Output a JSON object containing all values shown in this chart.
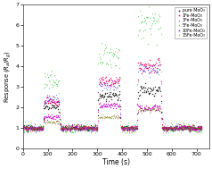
{
  "title": "",
  "xlabel": "Time (s)",
  "ylabel": "Response ($R_a$/$R_g$)",
  "xlim": [
    0,
    750
  ],
  "ylim": [
    0,
    7
  ],
  "yticks": [
    0,
    1,
    2,
    3,
    4,
    5,
    6,
    7
  ],
  "xticks": [
    0,
    100,
    200,
    300,
    400,
    500,
    600,
    700
  ],
  "series": [
    {
      "label": "pure MoO₃",
      "color": "#111111",
      "marker": "s",
      "peaks": [
        2.05,
        2.6,
        2.85
      ],
      "noise": 0.06
    },
    {
      "label": "1Fe-MoO₃",
      "color": "#ff0066",
      "marker": "s",
      "peaks": [
        2.3,
        3.3,
        4.0
      ],
      "noise": 0.07
    },
    {
      "label": "3Fe-MoO₃",
      "color": "#2222dd",
      "marker": "^",
      "peaks": [
        2.4,
        3.1,
        3.85
      ],
      "noise": 0.07
    },
    {
      "label": "5Fe-MoO₃",
      "color": "#00bb00",
      "marker": "^",
      "peaks": [
        3.3,
        4.5,
        6.2
      ],
      "noise": 0.14
    },
    {
      "label": "10Fe-MoO₃",
      "color": "#cc00cc",
      "marker": "s",
      "peaks": [
        1.55,
        2.1,
        2.0
      ],
      "noise": 0.05
    },
    {
      "label": "15Fe-MoO₃",
      "color": "#777700",
      "marker": "^",
      "peaks": [
        1.3,
        1.55,
        1.9
      ],
      "noise": 0.04
    }
  ],
  "pulse_on": [
    80,
    300,
    460
  ],
  "pulse_off": [
    145,
    390,
    555
  ],
  "baseline": 1.0,
  "total_time": 720,
  "rise_time": 5,
  "fall_time": 6,
  "dt": 1
}
